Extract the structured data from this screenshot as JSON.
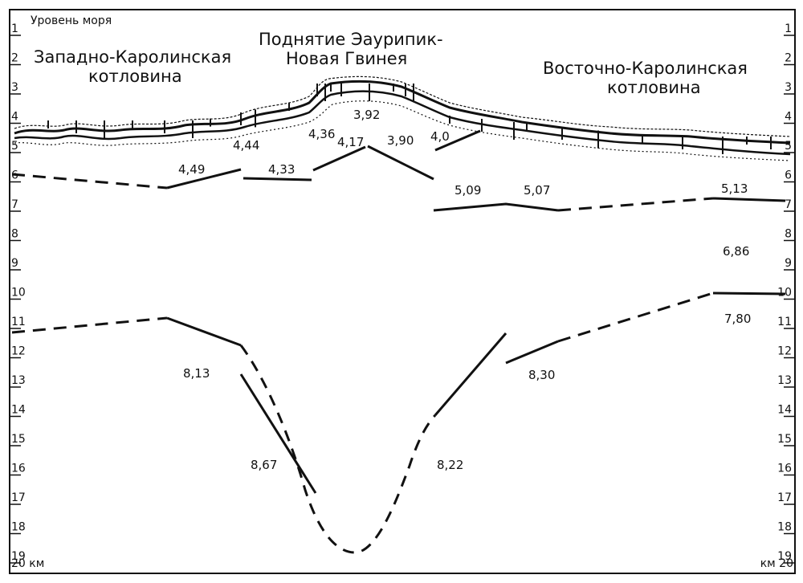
{
  "left_axis": {
    "top_label": "Уровень моря",
    "bottom_label": "20 км",
    "ticks": [
      "1",
      "2",
      "3",
      "4",
      "5",
      "6",
      "7",
      "8",
      "9",
      "10",
      "11",
      "12",
      "13",
      "14",
      "15",
      "16",
      "17",
      "18",
      "19"
    ]
  },
  "right_axis": {
    "bottom_label": "км 20",
    "ticks": [
      "1",
      "2",
      "3",
      "4",
      "5",
      "6",
      "7",
      "8",
      "9",
      "10",
      "11",
      "12",
      "13",
      "14",
      "15",
      "16",
      "17",
      "18",
      "19"
    ]
  },
  "regions": {
    "west": [
      "Западно-Каролинская",
      "котловина"
    ],
    "center": [
      "Поднятие Эаурипик-",
      "Новая Гвинея"
    ],
    "east": [
      "Восточно-Каролинская",
      "котловина"
    ]
  },
  "velocities": {
    "v_449": "4,49",
    "v_444": "4,44",
    "v_436": "4,36",
    "v_417": "4,17",
    "v_392": "3,92",
    "v_390": "3,90",
    "v_40": "4,0",
    "v_433": "4,33",
    "v_509": "5,09",
    "v_507": "5,07",
    "v_513": "5,13",
    "v_686": "6,86",
    "v_780": "7,80",
    "v_813": "8,13",
    "v_830": "8,30",
    "v_867": "8,67",
    "v_822": "8,22"
  }
}
